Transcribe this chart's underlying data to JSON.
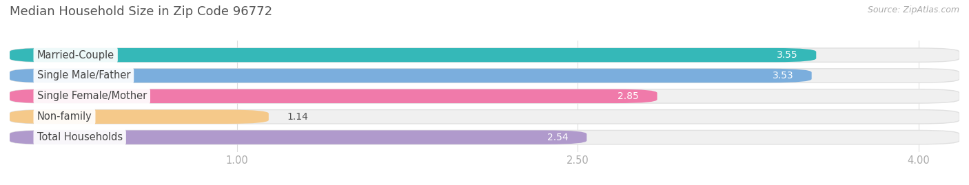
{
  "title": "Median Household Size in Zip Code 96772",
  "source": "Source: ZipAtlas.com",
  "categories": [
    "Married-Couple",
    "Single Male/Father",
    "Single Female/Mother",
    "Non-family",
    "Total Households"
  ],
  "values": [
    3.55,
    3.53,
    2.85,
    1.14,
    2.54
  ],
  "bar_colors": [
    "#35b8b8",
    "#7baedd",
    "#f07aaa",
    "#f5c98a",
    "#b09acc"
  ],
  "background_color": "#ffffff",
  "bar_bg_color": "#f0f0f0",
  "bar_border_color": "#e0e0e0",
  "xlim_min": 0,
  "xlim_max": 4.18,
  "xticks": [
    1.0,
    2.5,
    4.0
  ],
  "xtick_labels": [
    "1.00",
    "2.50",
    "4.00"
  ],
  "bar_height": 0.68,
  "bar_gap": 0.32,
  "title_fontsize": 13,
  "label_fontsize": 10.5,
  "value_fontsize": 10,
  "source_fontsize": 9,
  "title_color": "#555555",
  "label_color": "#444444",
  "tick_color": "#aaaaaa",
  "value_label_inside_color": "#ffffff",
  "value_label_outside_color": "#555555",
  "inside_threshold": 2.0
}
